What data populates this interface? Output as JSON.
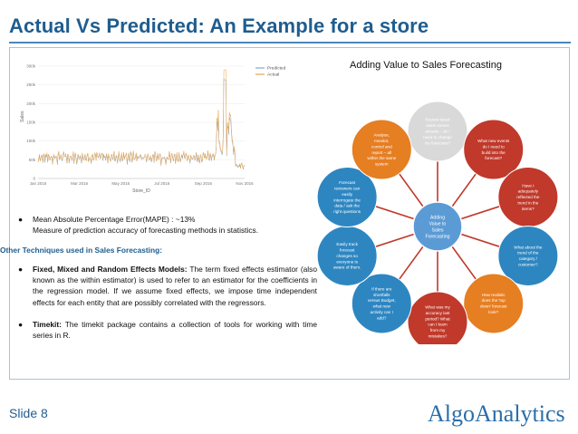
{
  "slide": {
    "title": "Actual Vs Predicted: An Example for a store",
    "number_label": "Slide  8"
  },
  "side_caption": "Adding Value to Sales Forecasting",
  "chart_data": {
    "type": "line",
    "title": "",
    "xlabel": "Store_ID",
    "ylabel": "Sales",
    "x_tick_labels": [
      "Jan 2016",
      "Mar 2016",
      "May 2016",
      "Jul 2016",
      "Sep 2016",
      "Nov 2016"
    ],
    "y_tick_labels": [
      "0",
      "50k",
      "100k",
      "150k",
      "200k",
      "250k",
      "300k"
    ],
    "ylim": [
      0,
      300000
    ],
    "legend_position": "top-right",
    "series": [
      {
        "name": "Predicted",
        "color": "#8aa7c4"
      },
      {
        "name": "Actual",
        "color": "#e8a24a"
      }
    ]
  },
  "mind_map": {
    "center": "Adding Value to Sales Forecasting",
    "nodes": [
      {
        "text": "Review latest sales versus actuals – do I need to change my forecasts?",
        "color": "#d9d9d9"
      },
      {
        "text": "What new events do I need to build into the forecast?",
        "color": "#c0392b"
      },
      {
        "text": "Have I adequately reflected the trend in the items?",
        "color": "#c0392b"
      },
      {
        "text": "What about the trend of the category / customer?",
        "color": "#2e86c1"
      },
      {
        "text": "How realistic does the 'top down' forecast look?",
        "color": "#e67e22"
      },
      {
        "text": "What was my accuracy last period? What can I learn from my mistakes?",
        "color": "#c0392b"
      },
      {
        "text": "If there are shortfalls versus Budget, what new activity can I add?",
        "color": "#2e86c1"
      },
      {
        "text": "Easily track forecast changes so everyone is aware of them.",
        "color": "#2e86c1"
      },
      {
        "text": "Forecast reviewers can easily interrogate the data / ask the right questions",
        "color": "#2e86c1"
      },
      {
        "text": "Analyse, monitor, control and report – all within the same system",
        "color": "#e67e22"
      }
    ]
  },
  "body": {
    "mape_line1": "Mean Absolute Percentage Error(MAPE) : ~13%",
    "mape_line2": "Measure of prediction accuracy of forecasting methods in statistics.",
    "other_heading": "Other Techniques used in Sales Forecasting:",
    "fixed_title": "Fixed, Mixed and Random Effects Models:",
    "fixed_text": " The term fixed effects estimator (also known as the within estimator) is used to refer to an estimator for the coefficients in the regression model. If we assume fixed effects, we impose time independent effects for each entity that are possibly correlated with the regressors.",
    "timekit_title": "Timekit:",
    "timekit_text": " The timekit package contains a collection of tools for working with time series in R.",
    "bullet_symbol": "●"
  },
  "logo": {
    "text": "AlgoAnalytics"
  }
}
